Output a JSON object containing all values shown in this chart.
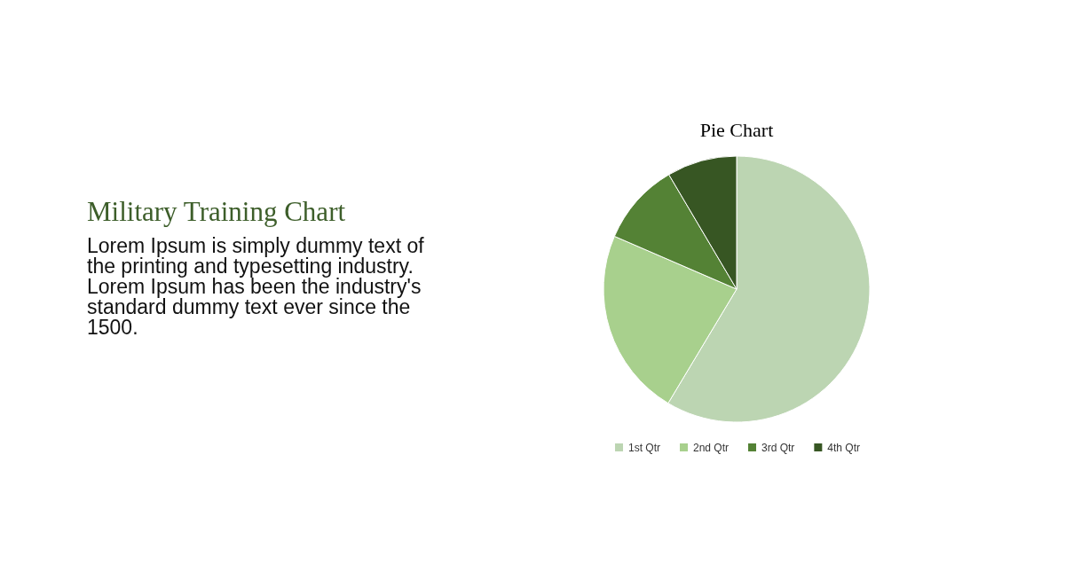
{
  "chart_data": {
    "type": "pie",
    "title": "Pie Chart",
    "categories": [
      "1st Qtr",
      "2nd Qtr",
      "3rd Qtr",
      "4th Qtr"
    ],
    "values": [
      58.6,
      22.9,
      10.0,
      8.5
    ],
    "colors": [
      "#bcd5b2",
      "#a8d08d",
      "#548235",
      "#375623"
    ],
    "legend": "bottom",
    "annotations": [
      "Military Training Chart",
      "Lorem Ipsum is simply dummy text of the printing and typesetting industry. Lorem Ipsum has been the industry's standard dummy text ever since the 1500."
    ]
  }
}
